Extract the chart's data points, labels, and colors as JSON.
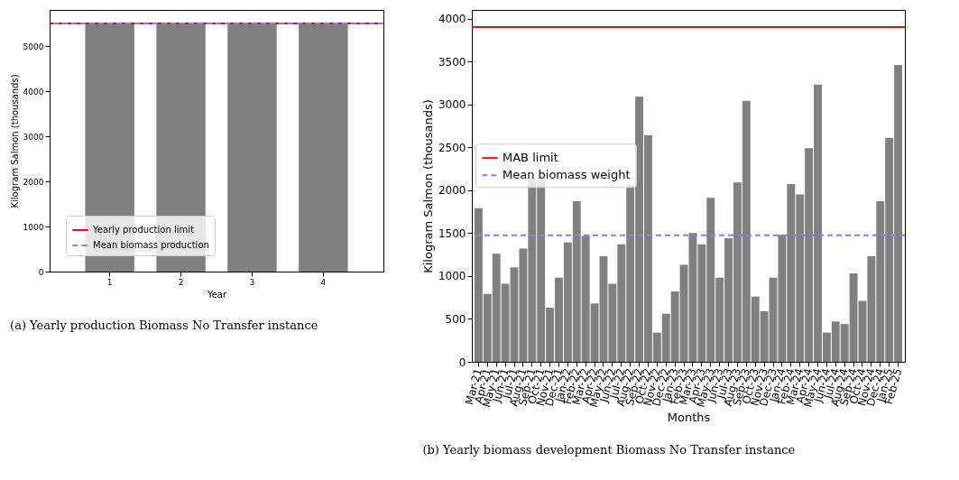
{
  "chart_data": [
    {
      "type": "bar",
      "xlabel": "Year",
      "ylabel": "Kilogram Salmon (thousands)",
      "categories": [
        "1",
        "2",
        "3",
        "4"
      ],
      "values": [
        5500,
        5500,
        5500,
        5500
      ],
      "color": "#808080",
      "ylim": [
        0,
        5800
      ],
      "yticks": [
        0,
        1000,
        2000,
        3000,
        4000,
        5000
      ],
      "grid": false,
      "legend": "bottom left",
      "ref_lines": [
        {
          "axis": "y",
          "value": 5500,
          "label": "Yearly production limit",
          "color": "#ff0000",
          "line_style": "solid"
        },
        {
          "axis": "y",
          "value": 5500,
          "label": "Mean biomass production",
          "color": "#8080ff",
          "line_style": "dashed"
        }
      ],
      "annotations": [
        "(a) Yearly production Biomass No Transfer instance"
      ]
    },
    {
      "type": "bar",
      "xlabel": "Months",
      "ylabel": "Kilogram Salmon (thousands)",
      "categories": [
        "Mar-21",
        "Apr-21",
        "May-21",
        "Jun-21",
        "Jul-21",
        "Aug-21",
        "Sep-21",
        "Oct-21",
        "Nov-21",
        "Dec-21",
        "Jan-22",
        "Feb-22",
        "Mar-22",
        "Apr-22",
        "May-22",
        "Jun-22",
        "Jul-22",
        "Aug-22",
        "Sep-22",
        "Oct-22",
        "Nov-22",
        "Dec-22",
        "Jan-23",
        "Feb-23",
        "Mar-23",
        "Apr-23",
        "May-23",
        "Jun-23",
        "Jul-23",
        "Aug-23",
        "Sep-23",
        "Oct-23",
        "Nov-23",
        "Dec-23",
        "Jan-24",
        "Feb-24",
        "Mar-24",
        "Apr-24",
        "May-24",
        "Jun-24",
        "Jul-24",
        "Aug-24",
        "Sep-24",
        "Oct-24",
        "Nov-24",
        "Dec-24",
        "Jan-25",
        "Feb-25"
      ],
      "values": [
        1790,
        790,
        1260,
        910,
        1100,
        1320,
        2140,
        2120,
        630,
        980,
        1390,
        1870,
        1470,
        680,
        1230,
        910,
        1370,
        2060,
        3090,
        2640,
        340,
        560,
        820,
        1130,
        1500,
        1370,
        1910,
        980,
        1440,
        2090,
        3040,
        760,
        590,
        980,
        1480,
        2070,
        1950,
        2490,
        3230,
        340,
        470,
        440,
        1030,
        710,
        1230,
        1870,
        2610,
        3460
      ],
      "color": "#808080",
      "ylim": [
        0,
        4100
      ],
      "yticks": [
        0,
        500,
        1000,
        1500,
        2000,
        2500,
        3000,
        3500,
        4000
      ],
      "grid": false,
      "legend": "left",
      "ref_lines": [
        {
          "axis": "y",
          "value": 3900,
          "label": "MAB limit",
          "color": "#ff0000",
          "line_style": "solid"
        },
        {
          "axis": "y",
          "value": 1475,
          "label": "Mean biomass weight",
          "color": "#8080ff",
          "line_style": "dashed"
        }
      ],
      "annotations": [
        "(b) Yearly biomass development Biomass No Transfer instance"
      ]
    }
  ]
}
